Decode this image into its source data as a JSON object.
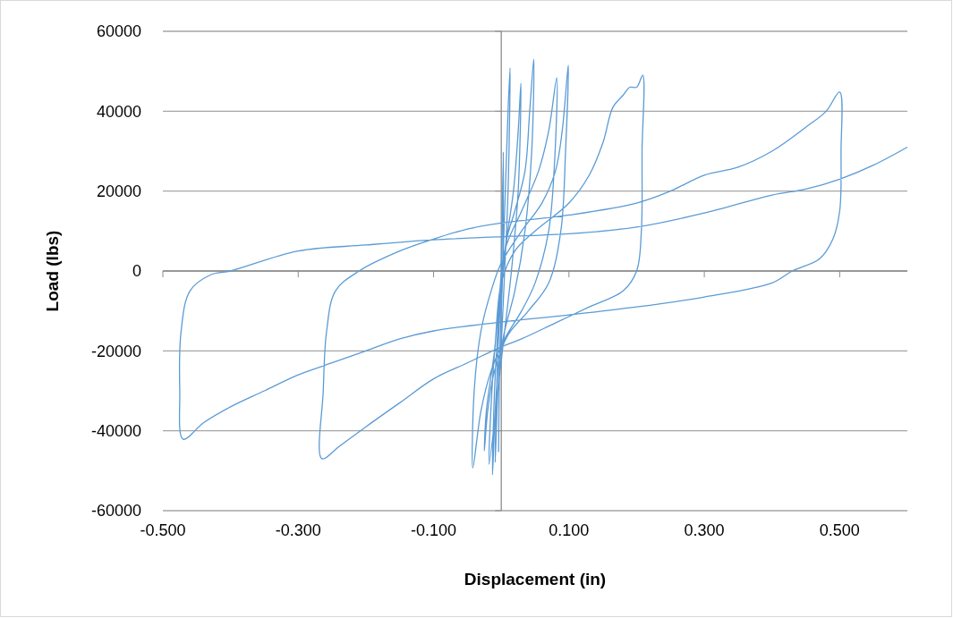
{
  "chart_data": {
    "type": "line",
    "xlabel": "Displacement (in)",
    "ylabel": "Load (lbs)",
    "xlim": [
      -0.5,
      0.6
    ],
    "xticks": [
      {
        "value": -0.5,
        "label": "-0.500"
      },
      {
        "value": -0.3,
        "label": "-0.300"
      },
      {
        "value": -0.1,
        "label": "-0.100"
      },
      {
        "value": 0.1,
        "label": "0.100"
      },
      {
        "value": 0.3,
        "label": "0.300"
      },
      {
        "value": 0.5,
        "label": "0.500"
      }
    ],
    "ylim": [
      -60000,
      60000
    ],
    "yticks": [
      -60000,
      -40000,
      -20000,
      0,
      20000,
      40000,
      60000
    ],
    "grid": "y",
    "marker": "none",
    "line_style": "solid",
    "series": [
      {
        "color": "#5b9bd5",
        "x": [
          0,
          0.003,
          0.002,
          -0.002,
          -0.004,
          -0.002,
          0.002,
          0.006,
          0.01,
          0.013,
          0.01,
          0.005,
          0,
          -0.005,
          -0.009,
          -0.006,
          0,
          0.008,
          0.018,
          0.025,
          0.029,
          0.025,
          0.015,
          0.005,
          -0.005,
          -0.018,
          -0.012,
          -0.003,
          0.008,
          0.02,
          0.035,
          0.042,
          0.048,
          0.045,
          0.035,
          0.02,
          0.005,
          -0.005,
          -0.013,
          -0.01,
          -0.005,
          0.005,
          0.03,
          0.055,
          0.07,
          0.082,
          0.078,
          0.07,
          0.05,
          0.03,
          0.005,
          -0.015,
          -0.03,
          -0.042,
          -0.04,
          -0.03,
          -0.015,
          0,
          0.03,
          0.06,
          0.08,
          0.09,
          0.099,
          0.095,
          0.088,
          0.07,
          0.04,
          0.01,
          -0.01,
          -0.02,
          -0.025,
          -0.022,
          -0.01,
          0,
          0.02,
          0.05,
          0.1,
          0.13,
          0.15,
          0.165,
          0.18,
          0.19,
          0.2,
          0.209,
          0.208,
          0.207,
          0.2,
          0.18,
          0.13,
          0.08,
          0.03,
          0,
          -0.05,
          -0.1,
          -0.15,
          -0.2,
          -0.24,
          -0.265,
          -0.263,
          -0.258,
          -0.245,
          -0.21,
          -0.15,
          -0.1,
          -0.05,
          0,
          0.1,
          0.2,
          0.25,
          0.3,
          0.35,
          0.4,
          0.45,
          0.48,
          0.5,
          0.502,
          0.5,
          0.49,
          0.47,
          0.43,
          0.4,
          0.3,
          0.2,
          0.1,
          0,
          -0.1,
          -0.15,
          -0.2,
          -0.25,
          -0.3,
          -0.35,
          -0.4,
          -0.44,
          -0.47,
          -0.475,
          -0.473,
          -0.46,
          -0.43,
          -0.4,
          -0.3,
          -0.2,
          -0.1,
          0,
          0.1,
          0.2,
          0.3,
          0.4,
          0.45,
          0.5,
          0.55,
          0.6
        ],
        "values": [
          0,
          29800,
          0,
          -20000,
          -45200,
          -20000,
          0,
          20000,
          40000,
          50800,
          20000,
          0,
          -18000,
          -30000,
          -47900,
          -25000,
          -5000,
          8000,
          20000,
          35000,
          47000,
          20000,
          0,
          -15000,
          -30000,
          -48400,
          -25000,
          -8000,
          8000,
          15000,
          25000,
          40000,
          53000,
          30000,
          10000,
          -5000,
          -15000,
          -25000,
          -51000,
          -30000,
          -15000,
          5000,
          15000,
          25000,
          35000,
          48400,
          25000,
          10000,
          -3000,
          -10000,
          -17000,
          -25000,
          -35000,
          -49300,
          -30000,
          -15000,
          -5000,
          2000,
          10000,
          17000,
          25000,
          35000,
          51500,
          30000,
          10000,
          -3000,
          -10000,
          -16000,
          -25000,
          -35000,
          -45000,
          -35000,
          -20000,
          -3000,
          5000,
          10000,
          17000,
          24000,
          32000,
          41000,
          44000,
          46000,
          46000,
          49000,
          30000,
          10000,
          0,
          -5000,
          -9000,
          -13000,
          -17000,
          -19000,
          -23000,
          -27000,
          -33000,
          -39000,
          -44000,
          -47000,
          -30000,
          -15000,
          -5000,
          0,
          5000,
          8000,
          10500,
          12000,
          14000,
          17000,
          20000,
          24000,
          26000,
          30000,
          36000,
          40000,
          44800,
          30000,
          15000,
          8000,
          3000,
          0,
          -3000,
          -6500,
          -9000,
          -11000,
          -12800,
          -15000,
          -17000,
          -20000,
          -23000,
          -26000,
          -30000,
          -34000,
          -38000,
          -42100,
          -30000,
          -15000,
          -5000,
          -1000,
          0,
          5000,
          6500,
          7800,
          8600,
          9300,
          11000,
          14500,
          19000,
          20500,
          23000,
          26500,
          31000
        ]
      }
    ]
  }
}
